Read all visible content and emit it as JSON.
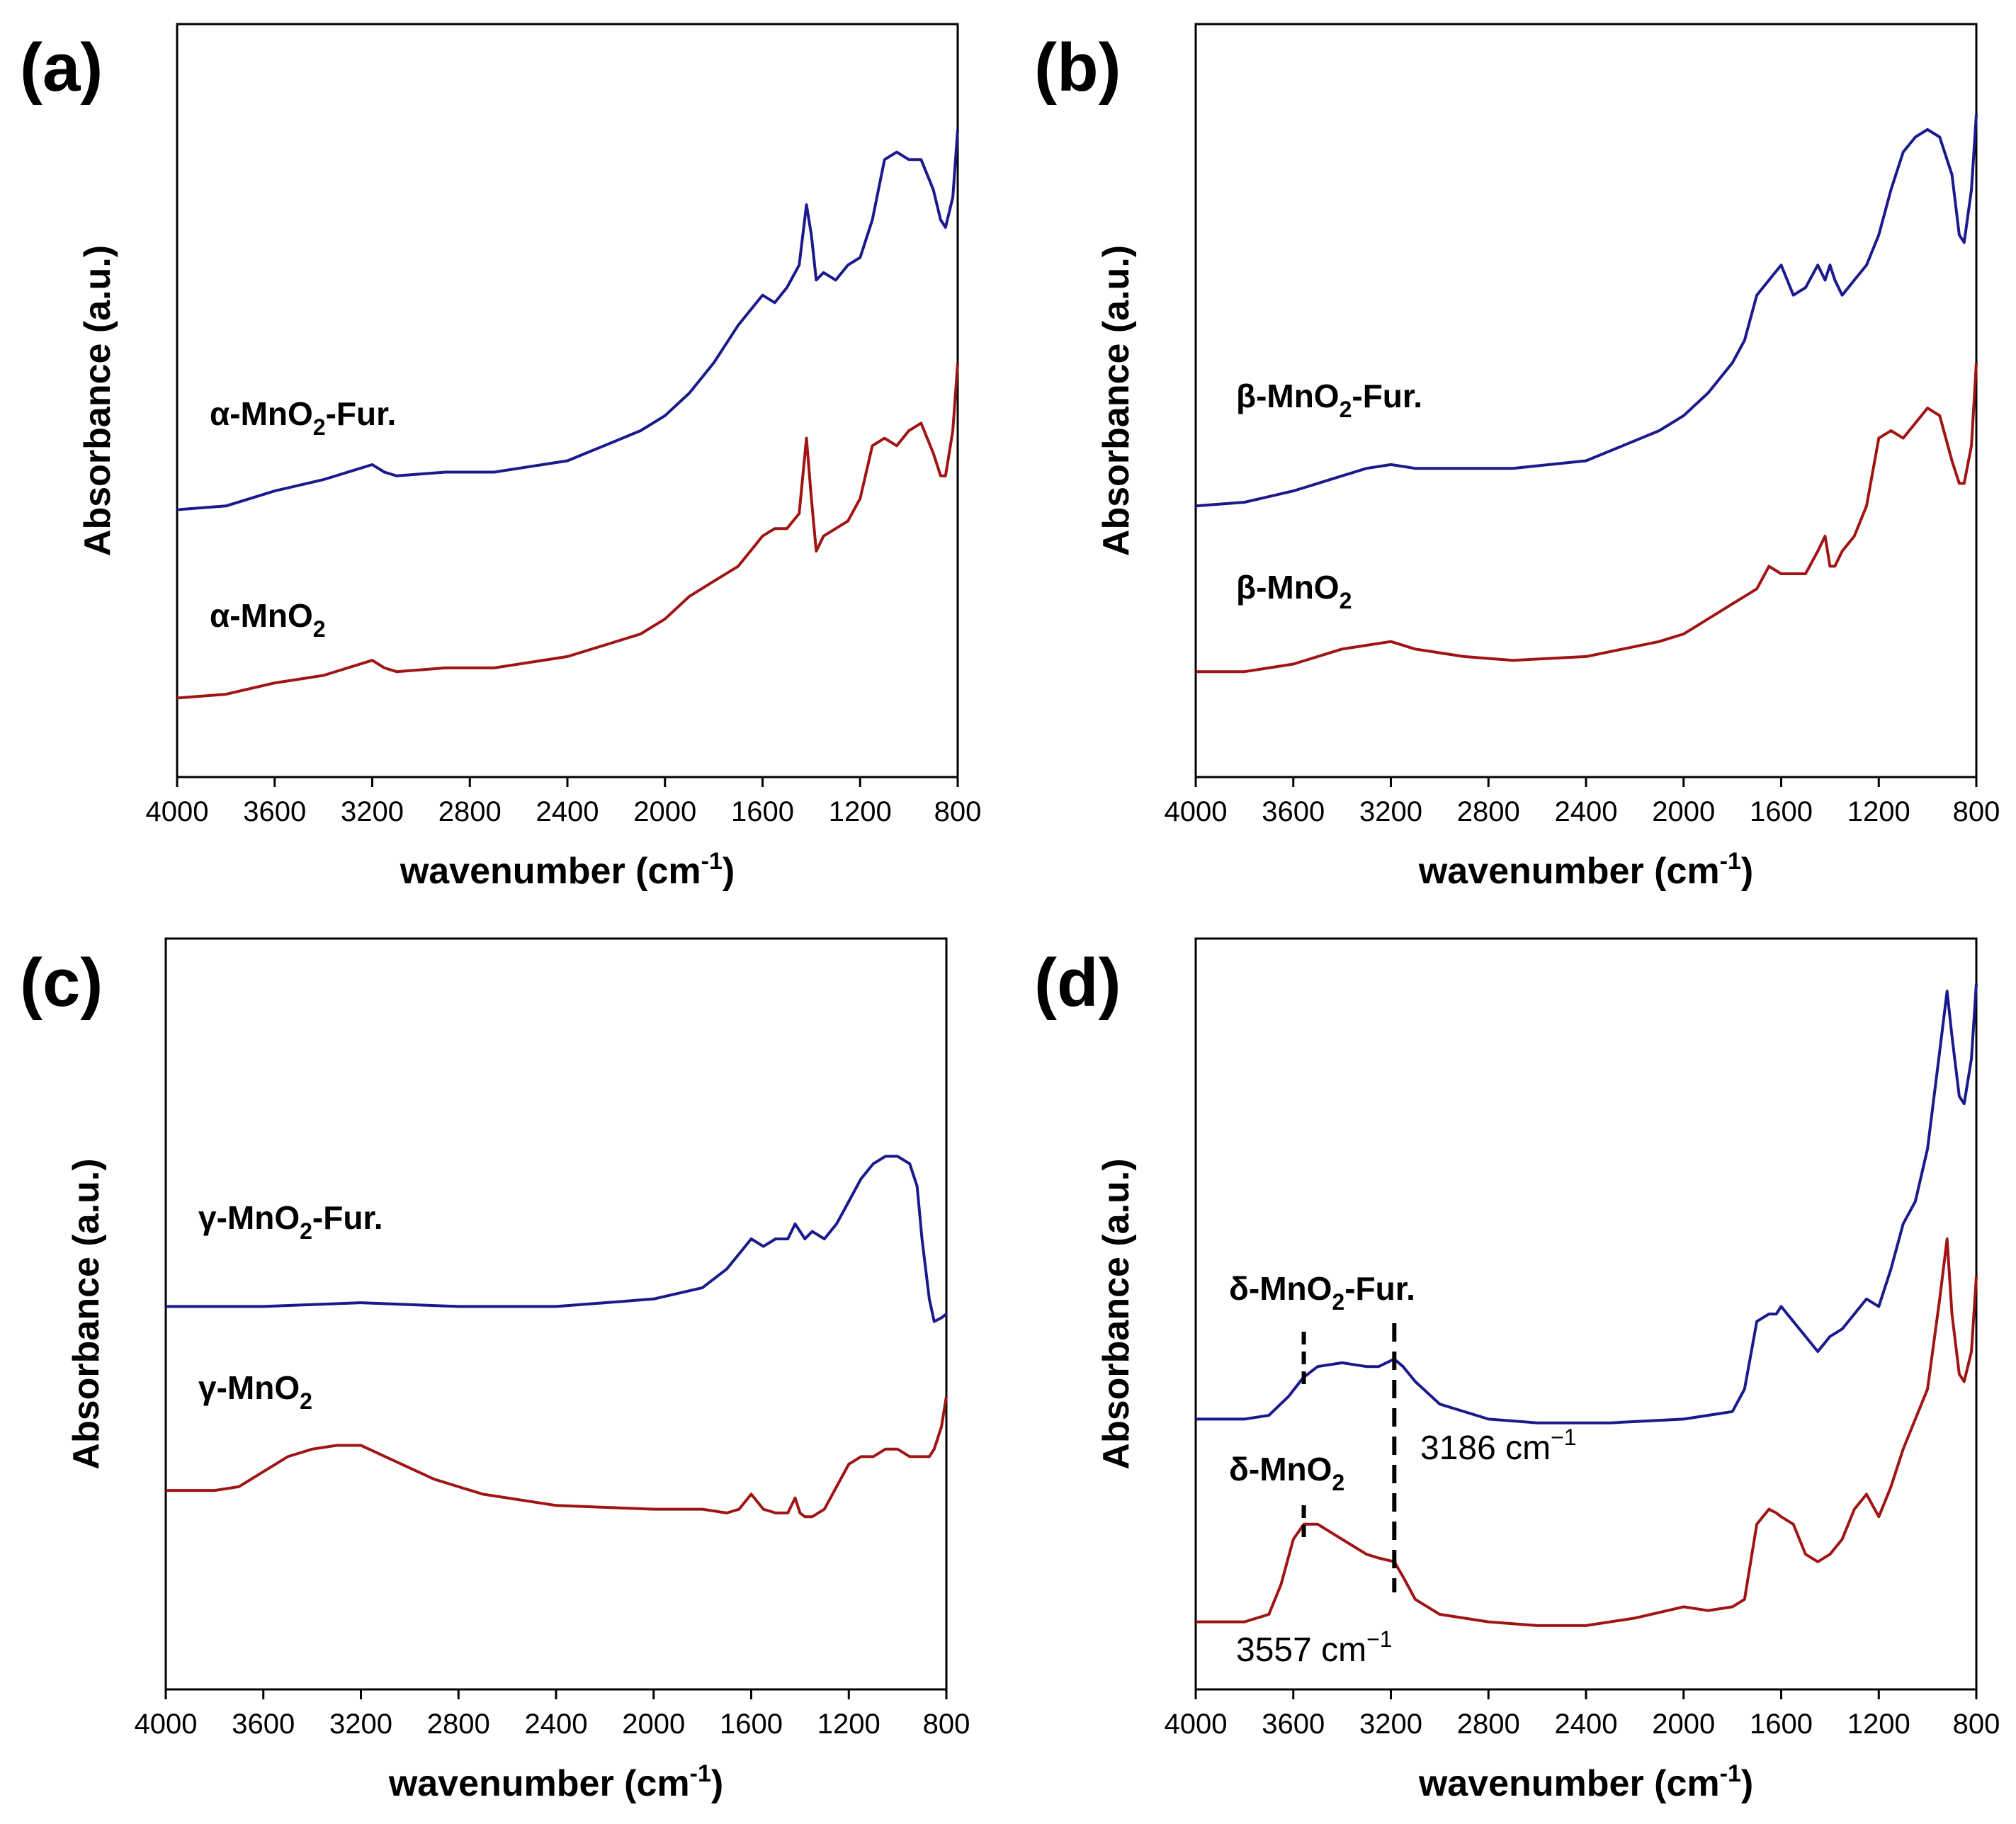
{
  "figure": {
    "panels": [
      {
        "tag": "(a)",
        "xlabel_main": "wavenumber (cm",
        "xlabel_sup": "-1",
        "xlabel_end": ")",
        "ylabel": "Absorbance (a.u.)"
      },
      {
        "tag": "(b)",
        "xlabel_main": "wavenumber (cm",
        "xlabel_sup": "-1",
        "xlabel_end": ")",
        "ylabel": "Absorbance (a.u.)"
      },
      {
        "tag": "(c)",
        "xlabel_main": "wavenumber (cm",
        "xlabel_sup": "-1",
        "xlabel_end": ")",
        "ylabel": "Absorbance (a.u.)"
      },
      {
        "tag": "(d)",
        "xlabel_main": "wavenumber (cm",
        "xlabel_sup": "-1",
        "xlabel_end": ")",
        "ylabel": "Absorbance (a.u.)"
      }
    ],
    "x_ticks": [
      "4000",
      "3600",
      "3200",
      "2800",
      "2400",
      "2000",
      "1600",
      "1200",
      "800"
    ],
    "colors": {
      "fur": "#1a1a8c",
      "base": "#a01414",
      "axis": "#000000"
    }
  },
  "chart_data": [
    {
      "panel": "(a)",
      "type": "line",
      "title": "",
      "xlabel": "wavenumber (cm-1)",
      "ylabel": "Absorbance (a.u.)",
      "xlim": [
        4000,
        800
      ],
      "ylim": [
        0,
        1
      ],
      "x_reversed": true,
      "labels": {
        "fur": {
          "prefix": "α-MnO",
          "sub": "2",
          "suffix": "-Fur."
        },
        "base": {
          "prefix": "α-MnO",
          "sub": "2",
          "suffix": ""
        }
      },
      "series": [
        {
          "name": "α-MnO2-Fur.",
          "color": "#1a1a8c",
          "x": [
            4000,
            3800,
            3600,
            3400,
            3250,
            3200,
            3150,
            3100,
            2900,
            2700,
            2400,
            2250,
            2100,
            2000,
            1900,
            1800,
            1700,
            1650,
            1600,
            1550,
            1500,
            1450,
            1420,
            1400,
            1380,
            1350,
            1300,
            1250,
            1200,
            1150,
            1100,
            1050,
            1000,
            950,
            900,
            870,
            850,
            820,
            800
          ],
          "y": [
            0.355,
            0.36,
            0.38,
            0.395,
            0.41,
            0.415,
            0.405,
            0.4,
            0.405,
            0.405,
            0.42,
            0.44,
            0.46,
            0.48,
            0.51,
            0.55,
            0.6,
            0.62,
            0.64,
            0.63,
            0.65,
            0.68,
            0.76,
            0.72,
            0.66,
            0.67,
            0.66,
            0.68,
            0.69,
            0.74,
            0.82,
            0.83,
            0.82,
            0.82,
            0.78,
            0.74,
            0.73,
            0.77,
            0.86
          ]
        },
        {
          "name": "α-MnO2",
          "color": "#a01414",
          "x": [
            4000,
            3800,
            3600,
            3400,
            3250,
            3200,
            3150,
            3100,
            2900,
            2700,
            2400,
            2250,
            2100,
            2000,
            1900,
            1800,
            1700,
            1650,
            1600,
            1550,
            1500,
            1450,
            1420,
            1400,
            1380,
            1350,
            1300,
            1250,
            1200,
            1150,
            1100,
            1050,
            1000,
            950,
            900,
            870,
            850,
            820,
            800
          ],
          "y": [
            0.105,
            0.11,
            0.125,
            0.135,
            0.15,
            0.155,
            0.145,
            0.14,
            0.145,
            0.145,
            0.16,
            0.175,
            0.19,
            0.21,
            0.24,
            0.26,
            0.28,
            0.3,
            0.32,
            0.33,
            0.33,
            0.35,
            0.45,
            0.37,
            0.3,
            0.32,
            0.33,
            0.34,
            0.37,
            0.44,
            0.45,
            0.44,
            0.46,
            0.47,
            0.43,
            0.4,
            0.4,
            0.46,
            0.55
          ]
        }
      ]
    },
    {
      "panel": "(b)",
      "type": "line",
      "title": "",
      "xlabel": "wavenumber (cm-1)",
      "ylabel": "Absorbance (a.u.)",
      "xlim": [
        4000,
        800
      ],
      "ylim": [
        0,
        1
      ],
      "x_reversed": true,
      "labels": {
        "fur": {
          "prefix": "β-MnO",
          "sub": "2",
          "suffix": "-Fur."
        },
        "base": {
          "prefix": "β-MnO",
          "sub": "2",
          "suffix": ""
        }
      },
      "series": [
        {
          "name": "β-MnO2-Fur.",
          "color": "#1a1a8c",
          "x": [
            4000,
            3800,
            3600,
            3400,
            3300,
            3200,
            3100,
            2900,
            2700,
            2400,
            2250,
            2100,
            2000,
            1900,
            1800,
            1750,
            1700,
            1650,
            1600,
            1550,
            1500,
            1450,
            1420,
            1400,
            1380,
            1350,
            1300,
            1250,
            1200,
            1150,
            1100,
            1050,
            1000,
            950,
            900,
            870,
            850,
            820,
            800
          ],
          "y": [
            0.36,
            0.365,
            0.38,
            0.4,
            0.41,
            0.415,
            0.41,
            0.41,
            0.41,
            0.42,
            0.44,
            0.46,
            0.48,
            0.51,
            0.55,
            0.58,
            0.64,
            0.66,
            0.68,
            0.64,
            0.65,
            0.68,
            0.66,
            0.68,
            0.66,
            0.64,
            0.66,
            0.68,
            0.72,
            0.78,
            0.83,
            0.85,
            0.86,
            0.85,
            0.8,
            0.72,
            0.71,
            0.78,
            0.88
          ]
        },
        {
          "name": "β-MnO2",
          "color": "#a01414",
          "x": [
            4000,
            3800,
            3600,
            3400,
            3300,
            3200,
            3100,
            2900,
            2700,
            2400,
            2250,
            2100,
            2000,
            1900,
            1800,
            1750,
            1700,
            1650,
            1600,
            1550,
            1500,
            1450,
            1420,
            1400,
            1380,
            1350,
            1300,
            1250,
            1200,
            1150,
            1100,
            1050,
            1000,
            950,
            900,
            870,
            850,
            820,
            800
          ],
          "y": [
            0.14,
            0.14,
            0.15,
            0.17,
            0.175,
            0.18,
            0.17,
            0.16,
            0.155,
            0.16,
            0.17,
            0.18,
            0.19,
            0.21,
            0.23,
            0.24,
            0.25,
            0.28,
            0.27,
            0.27,
            0.27,
            0.3,
            0.32,
            0.28,
            0.28,
            0.3,
            0.32,
            0.36,
            0.45,
            0.46,
            0.45,
            0.47,
            0.49,
            0.48,
            0.42,
            0.39,
            0.39,
            0.44,
            0.55
          ]
        }
      ]
    },
    {
      "panel": "(c)",
      "type": "line",
      "title": "",
      "xlabel": "wavenumber (cm-1)",
      "ylabel": "Absorbance (a.u.)",
      "xlim": [
        4000,
        800
      ],
      "ylim": [
        0,
        1
      ],
      "x_reversed": true,
      "labels": {
        "fur": {
          "prefix": "γ-MnO",
          "sub": "2",
          "suffix": "-Fur."
        },
        "base": {
          "prefix": "γ-MnO",
          "sub": "2",
          "suffix": ""
        }
      },
      "series": [
        {
          "name": "γ-MnO2-Fur.",
          "color": "#1a1a8c",
          "x": [
            4000,
            3600,
            3200,
            2800,
            2400,
            2000,
            1800,
            1700,
            1650,
            1600,
            1550,
            1500,
            1450,
            1420,
            1400,
            1380,
            1350,
            1300,
            1250,
            1200,
            1150,
            1100,
            1050,
            1000,
            950,
            920,
            900,
            870,
            850,
            820,
            800
          ],
          "y": [
            0.51,
            0.51,
            0.515,
            0.51,
            0.51,
            0.52,
            0.535,
            0.56,
            0.58,
            0.6,
            0.59,
            0.6,
            0.6,
            0.62,
            0.61,
            0.6,
            0.61,
            0.6,
            0.62,
            0.65,
            0.68,
            0.7,
            0.71,
            0.71,
            0.7,
            0.67,
            0.6,
            0.52,
            0.49,
            0.495,
            0.5
          ]
        },
        {
          "name": "γ-MnO2",
          "color": "#a01414",
          "x": [
            4000,
            3800,
            3700,
            3600,
            3500,
            3400,
            3300,
            3200,
            3100,
            2900,
            2700,
            2400,
            2000,
            1800,
            1700,
            1650,
            1600,
            1550,
            1500,
            1450,
            1420,
            1400,
            1380,
            1350,
            1300,
            1250,
            1200,
            1150,
            1100,
            1050,
            1000,
            950,
            900,
            870,
            850,
            820,
            800
          ],
          "y": [
            0.265,
            0.265,
            0.27,
            0.29,
            0.31,
            0.32,
            0.325,
            0.325,
            0.31,
            0.28,
            0.26,
            0.245,
            0.24,
            0.24,
            0.235,
            0.24,
            0.26,
            0.24,
            0.235,
            0.235,
            0.255,
            0.235,
            0.23,
            0.23,
            0.24,
            0.27,
            0.3,
            0.31,
            0.31,
            0.32,
            0.32,
            0.31,
            0.31,
            0.31,
            0.32,
            0.35,
            0.39
          ]
        }
      ]
    },
    {
      "panel": "(d)",
      "type": "line",
      "title": "",
      "xlabel": "wavenumber (cm-1)",
      "ylabel": "Absorbance (a.u.)",
      "xlim": [
        4000,
        800
      ],
      "ylim": [
        0,
        1
      ],
      "x_reversed": true,
      "labels": {
        "fur": {
          "prefix": "δ-MnO",
          "sub": "2",
          "suffix": "-Fur."
        },
        "base": {
          "prefix": "δ-MnO",
          "sub": "2",
          "suffix": ""
        }
      },
      "annotations": [
        {
          "text": "3186 cm",
          "sup": "−1",
          "x": 3186
        },
        {
          "text": "3557 cm",
          "sup": "−1",
          "x": 3557
        }
      ],
      "vlines": [
        3557,
        3186
      ],
      "series": [
        {
          "name": "δ-MnO2-Fur.",
          "color": "#1a1a8c",
          "x": [
            4000,
            3800,
            3700,
            3620,
            3560,
            3500,
            3400,
            3300,
            3250,
            3186,
            3150,
            3100,
            3000,
            2800,
            2600,
            2400,
            2300,
            2000,
            1800,
            1750,
            1700,
            1650,
            1620,
            1600,
            1550,
            1500,
            1450,
            1400,
            1350,
            1300,
            1250,
            1200,
            1150,
            1100,
            1050,
            1000,
            950,
            920,
            900,
            870,
            850,
            820,
            800
          ],
          "y": [
            0.36,
            0.36,
            0.365,
            0.39,
            0.415,
            0.43,
            0.435,
            0.43,
            0.43,
            0.44,
            0.43,
            0.41,
            0.38,
            0.36,
            0.355,
            0.355,
            0.355,
            0.36,
            0.37,
            0.4,
            0.49,
            0.5,
            0.5,
            0.51,
            0.49,
            0.47,
            0.45,
            0.47,
            0.48,
            0.5,
            0.52,
            0.51,
            0.56,
            0.62,
            0.65,
            0.72,
            0.85,
            0.93,
            0.87,
            0.79,
            0.78,
            0.84,
            0.94
          ]
        },
        {
          "name": "δ-MnO2",
          "color": "#a01414",
          "x": [
            4000,
            3800,
            3700,
            3650,
            3600,
            3557,
            3500,
            3400,
            3300,
            3250,
            3186,
            3150,
            3100,
            3000,
            2800,
            2600,
            2400,
            2200,
            2000,
            1900,
            1800,
            1750,
            1700,
            1650,
            1620,
            1600,
            1550,
            1500,
            1450,
            1400,
            1350,
            1300,
            1250,
            1200,
            1150,
            1100,
            1050,
            1000,
            950,
            920,
            900,
            870,
            850,
            820,
            800
          ],
          "y": [
            0.09,
            0.09,
            0.1,
            0.14,
            0.2,
            0.22,
            0.22,
            0.2,
            0.18,
            0.175,
            0.17,
            0.15,
            0.12,
            0.1,
            0.09,
            0.085,
            0.085,
            0.095,
            0.11,
            0.105,
            0.11,
            0.12,
            0.22,
            0.24,
            0.235,
            0.23,
            0.22,
            0.18,
            0.17,
            0.18,
            0.2,
            0.24,
            0.26,
            0.23,
            0.27,
            0.32,
            0.36,
            0.4,
            0.52,
            0.6,
            0.5,
            0.42,
            0.41,
            0.45,
            0.55
          ]
        }
      ]
    }
  ]
}
